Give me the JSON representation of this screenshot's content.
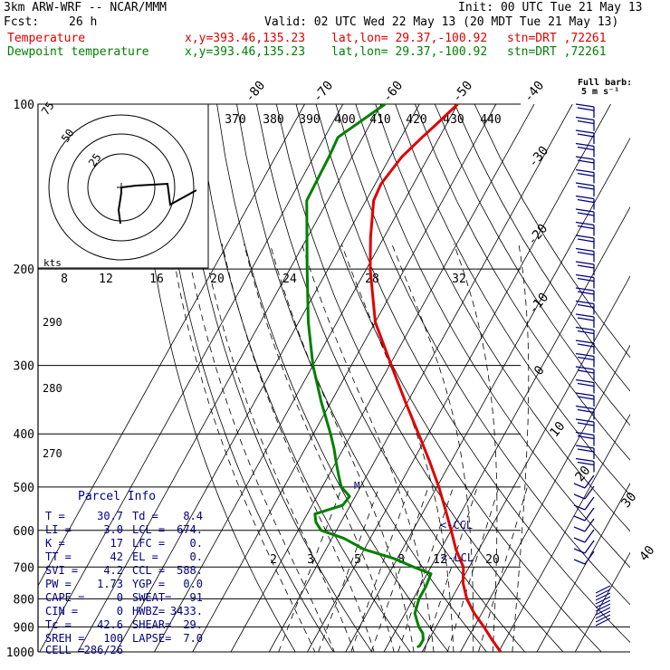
{
  "header": {
    "model": "3km ARW-WRF -- NCAR/MMM",
    "init": "Init: 00 UTC Tue 21 May 13",
    "fcst_label": "Fcst:",
    "fcst_hours": "26 h",
    "valid": "Valid: 02 UTC Wed 22 May 13 (20 MDT Tue 21 May 13)",
    "temp_label": "Temperature",
    "dew_label": "Dewpoint temperature",
    "xy": "x,y=393.46,135.23",
    "latlon": "lat,lon= 29.37,-100.92",
    "stn": "stn=DRT ,72261"
  },
  "barb_legend": {
    "title": "Full barb:",
    "units": "5 m s⁻¹"
  },
  "hodograph": {
    "rings": [
      "25",
      "50",
      "75"
    ],
    "kts_label": "kts"
  },
  "parcel_info": {
    "title": "Parcel Info",
    "rows": [
      [
        "T  =",
        "30.7",
        "Td =",
        "8.4"
      ],
      [
        "LI =",
        "3.0",
        "LCL =",
        "674."
      ],
      [
        "K  =",
        "17",
        "LFC =",
        "0."
      ],
      [
        "TT =",
        "42",
        "EL  =",
        "0."
      ],
      [
        "SVI =",
        "4.2",
        "CCL =",
        "588."
      ],
      [
        "PW =",
        "1.73",
        "YGP =",
        "0.0"
      ],
      [
        "CAPE =",
        "0",
        "SWEAT=",
        "91"
      ],
      [
        "CIN  =",
        "0",
        "HWBZ=",
        "3433."
      ],
      [
        "Tc =",
        "42.6",
        "SHEAR=",
        "29."
      ],
      [
        "SREH =",
        "100",
        "LAPSE=",
        "7.0"
      ],
      [
        "CELL =",
        "286/26",
        "",
        ""
      ]
    ]
  },
  "annotations": {
    "ccl": "<-CCL",
    "lcl": "<-LCL",
    "lcl_mark": "M"
  },
  "chart_data": {
    "type": "line",
    "subtype": "skew-T log-p",
    "pressure_range_hPa": [
      1000,
      100
    ],
    "pressure_ticks": [
      "100",
      "200",
      "300",
      "400",
      "500",
      "600",
      "700",
      "800",
      "900",
      "1000"
    ],
    "isotherm_labels_top": [
      "-80",
      "-70",
      "-60",
      "-50",
      "-40"
    ],
    "isotherm_labels_right": [
      "-30",
      "-20",
      "-10",
      "0",
      "10",
      "20",
      "30",
      "40"
    ],
    "theta_e_labels": [
      "370",
      "380",
      "390",
      "400",
      "410",
      "420",
      "430",
      "440"
    ],
    "theta_labels": [
      "290",
      "280",
      "270"
    ],
    "mixing_ratio_labels_upper": [
      "8",
      "12",
      "16",
      "20",
      "24",
      "28",
      "32"
    ],
    "mixing_ratio_labels_lower": [
      "2",
      "3",
      "5",
      "8",
      "12",
      "20"
    ],
    "series": [
      {
        "name": "Temperature",
        "color": "#e00000",
        "p": [
          1000,
          950,
          900,
          850,
          800,
          750,
          700,
          650,
          600,
          550,
          500,
          450,
          400,
          350,
          300,
          250,
          200,
          175,
          150,
          140,
          125,
          115,
          110,
          100
        ],
        "t": [
          30.5,
          26.5,
          22.5,
          18.0,
          14.0,
          10.8,
          8.5,
          4.0,
          0.0,
          -4.5,
          -9.5,
          -15.5,
          -22.5,
          -30.5,
          -39.5,
          -50.0,
          -59.0,
          -63.5,
          -68.0,
          -68.5,
          -67.0,
          -64.5,
          -63.0,
          -60.0
        ]
      },
      {
        "name": "Dewpoint temperature",
        "color": "#008000",
        "p": [
          980,
          975,
          950,
          925,
          900,
          875,
          850,
          800,
          760,
          720,
          700,
          675,
          650,
          620,
          600,
          580,
          560,
          540,
          520,
          500,
          475,
          450,
          425,
          400,
          350,
          300,
          250,
          200,
          150,
          125,
          115,
          100
        ],
        "t": [
          8.0,
          8.5,
          8.5,
          7.5,
          5.5,
          4.0,
          2.5,
          1.5,
          1.5,
          1.0,
          -4.5,
          -11.0,
          -20.0,
          -27.0,
          -34.0,
          -36.5,
          -38.0,
          -32.0,
          -31.5,
          -35.0,
          -37.5,
          -40.0,
          -42.5,
          -45.5,
          -52.5,
          -60.0,
          -67.5,
          -75.5,
          -85.5,
          -86.0,
          -86.5,
          -79.0
        ]
      }
    ]
  }
}
